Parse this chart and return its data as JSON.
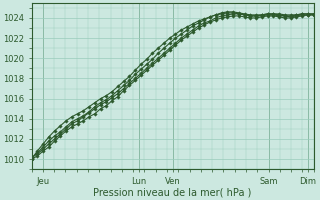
{
  "title": "",
  "xlabel": "Pression niveau de la mer( hPa )",
  "ylabel": "",
  "bg_color": "#cce8e0",
  "grid_color": "#99ccbb",
  "line_color": "#2d5a2d",
  "yticks": [
    1010,
    1012,
    1014,
    1016,
    1018,
    1020,
    1022,
    1024
  ],
  "ylim": [
    1009.0,
    1025.5
  ],
  "xlim": [
    0,
    100
  ],
  "xtick_positions": [
    4,
    38,
    50,
    84,
    98
  ],
  "xtick_labels": [
    "Jeu",
    "Lun",
    "Ven",
    "Sam",
    "Dim"
  ],
  "vline_positions": [
    4,
    38,
    50,
    84,
    98
  ],
  "series": [
    [
      1010.0,
      1010.3,
      1010.8,
      1011.2,
      1011.8,
      1012.3,
      1012.8,
      1013.2,
      1013.5,
      1013.8,
      1014.2,
      1014.5,
      1015.0,
      1015.3,
      1015.8,
      1016.2,
      1016.8,
      1017.3,
      1017.8,
      1018.3,
      1018.8,
      1019.3,
      1019.8,
      1020.3,
      1020.8,
      1021.3,
      1021.8,
      1022.2,
      1022.6,
      1023.0,
      1023.3,
      1023.6,
      1023.8,
      1024.0,
      1024.1,
      1024.2,
      1024.2,
      1024.1,
      1024.0,
      1024.0,
      1024.1,
      1024.2,
      1024.2,
      1024.1,
      1024.0,
      1024.0,
      1024.1,
      1024.2,
      1024.3,
      1024.3
    ],
    [
      1010.2,
      1010.5,
      1011.0,
      1011.5,
      1012.0,
      1012.5,
      1013.0,
      1013.5,
      1013.8,
      1014.2,
      1014.6,
      1015.0,
      1015.4,
      1015.7,
      1016.1,
      1016.5,
      1017.0,
      1017.5,
      1018.0,
      1018.5,
      1019.0,
      1019.5,
      1020.0,
      1020.5,
      1021.0,
      1021.5,
      1022.0,
      1022.4,
      1022.8,
      1023.2,
      1023.5,
      1023.7,
      1024.0,
      1024.2,
      1024.3,
      1024.4,
      1024.4,
      1024.3,
      1024.2,
      1024.2,
      1024.3,
      1024.4,
      1024.4,
      1024.3,
      1024.2,
      1024.2,
      1024.3,
      1024.4,
      1024.4,
      1024.4
    ],
    [
      1010.1,
      1010.6,
      1011.2,
      1011.8,
      1012.3,
      1012.7,
      1013.2,
      1013.7,
      1014.0,
      1014.3,
      1014.7,
      1015.2,
      1015.6,
      1015.9,
      1016.3,
      1016.8,
      1017.3,
      1017.8,
      1018.4,
      1018.9,
      1019.4,
      1019.9,
      1020.5,
      1021.0,
      1021.5,
      1022.0,
      1022.4,
      1022.8,
      1023.2,
      1023.5,
      1023.8,
      1024.1,
      1024.3,
      1024.5,
      1024.6,
      1024.6,
      1024.5,
      1024.4,
      1024.3,
      1024.3,
      1024.3,
      1024.4,
      1024.4,
      1024.4,
      1024.3,
      1024.3,
      1024.3,
      1024.4,
      1024.4,
      1024.4
    ],
    [
      1010.0,
      1010.8,
      1011.5,
      1012.2,
      1012.8,
      1013.3,
      1013.8,
      1014.2,
      1014.5,
      1014.8,
      1015.2,
      1015.6,
      1016.0,
      1016.3,
      1016.7,
      1017.2,
      1017.7,
      1018.2,
      1018.8,
      1019.4,
      1019.9,
      1020.5,
      1021.0,
      1021.5,
      1022.0,
      1022.4,
      1022.8,
      1023.1,
      1023.4,
      1023.7,
      1023.9,
      1024.1,
      1024.3,
      1024.4,
      1024.5,
      1024.5,
      1024.4,
      1024.3,
      1024.2,
      1024.2,
      1024.2,
      1024.3,
      1024.3,
      1024.2,
      1024.2,
      1024.1,
      1024.2,
      1024.3,
      1024.3,
      1024.3
    ]
  ],
  "marker": "D",
  "marker_size": 1.8,
  "line_width": 0.8
}
